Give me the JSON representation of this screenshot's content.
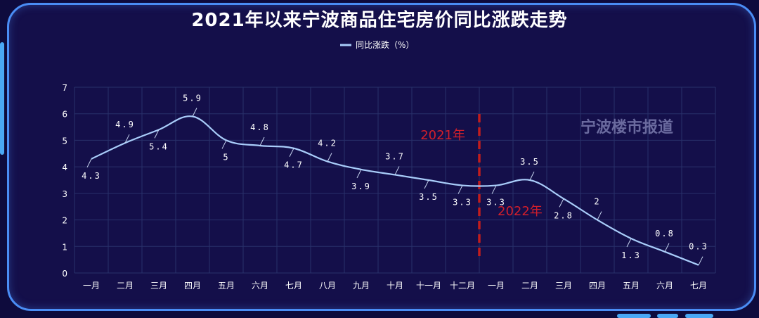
{
  "chart_data": {
    "type": "line",
    "title": "2021年以来宁波商品住宅房价同比涨跌走势",
    "legend": {
      "label": "同比涨跌（%）",
      "placement": "top-center"
    },
    "categories": [
      "一月",
      "二月",
      "三月",
      "四月",
      "五月",
      "六月",
      "七月",
      "八月",
      "九月",
      "十月",
      "十一月",
      "十二月",
      "一月",
      "二月",
      "三月",
      "四月",
      "五月",
      "六月",
      "七月"
    ],
    "series": [
      {
        "name": "同比涨跌（%）",
        "values": [
          4.3,
          4.9,
          5.4,
          5.9,
          5,
          4.8,
          4.7,
          4.2,
          3.9,
          3.7,
          3.5,
          3.3,
          3.3,
          3.5,
          2.8,
          2,
          1.3,
          0.8,
          0.3
        ]
      }
    ],
    "ylim": [
      0,
      7
    ],
    "yticks": [
      0,
      1,
      2,
      3,
      4,
      5,
      6,
      7
    ],
    "grid": true,
    "color": "#a9cdfa",
    "annotations": {
      "left_year": "2021年",
      "right_year": "2022年",
      "divider_color": "#c21d1d",
      "year_color": "#d21f2b"
    },
    "watermark": "宁波楼市报道"
  }
}
